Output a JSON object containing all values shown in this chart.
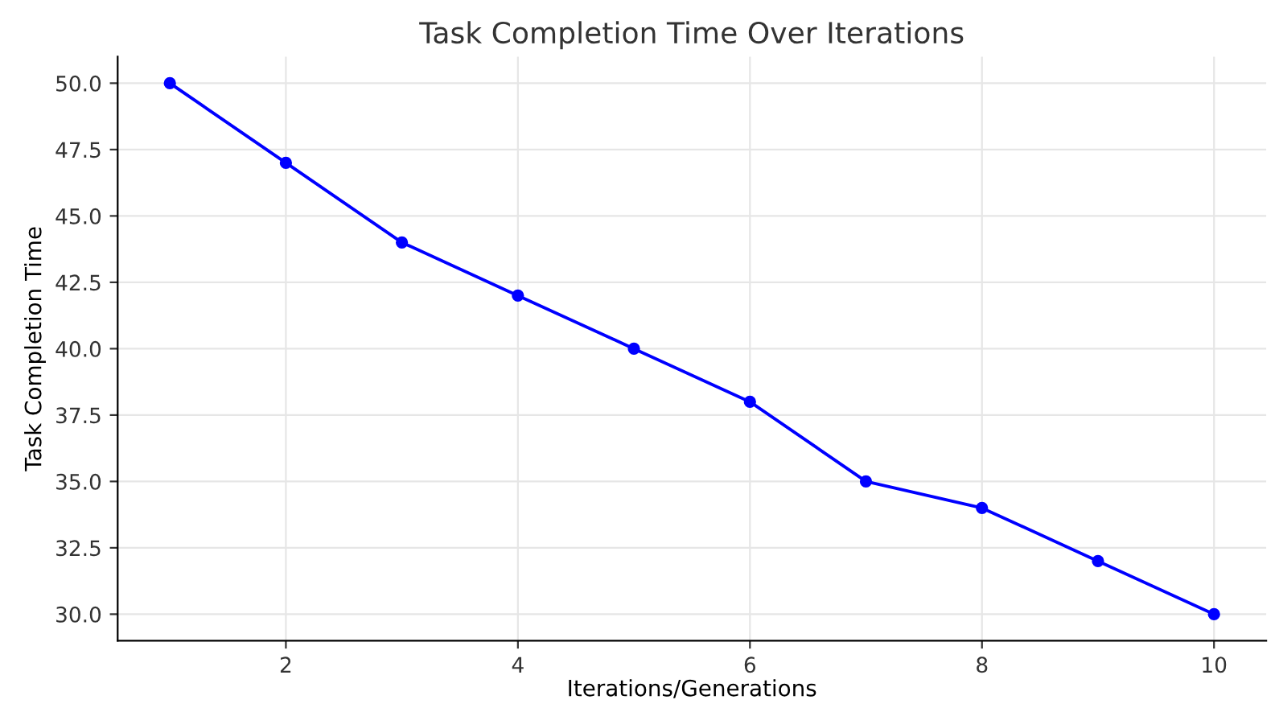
{
  "chart_data": {
    "type": "line",
    "title": "Task Completion Time Over Iterations",
    "xlabel": "Iterations/Generations",
    "ylabel": "Task Completion Time",
    "x": [
      1,
      2,
      3,
      4,
      5,
      6,
      7,
      8,
      9,
      10
    ],
    "series": [
      {
        "color": "#0000ff",
        "values": [
          50,
          47,
          44,
          42,
          40,
          38,
          35,
          34,
          32,
          30
        ]
      }
    ],
    "xlim": [
      0.55,
      10.45
    ],
    "xticks": [
      2,
      4,
      6,
      8,
      10
    ],
    "ylim": [
      29,
      51
    ],
    "yticks": [
      {
        "value": 30,
        "label": "30.0"
      },
      {
        "value": 32.5,
        "label": "32.5"
      },
      {
        "value": 35,
        "label": "35.0"
      },
      {
        "value": 37.5,
        "label": "37.5"
      },
      {
        "value": 40,
        "label": "40.0"
      },
      {
        "value": 42.5,
        "label": "42.5"
      },
      {
        "value": 45,
        "label": "45.0"
      },
      {
        "value": 47.5,
        "label": "47.5"
      },
      {
        "value": 50,
        "label": "50.0"
      }
    ],
    "grid": true,
    "marker": "circle",
    "line_style": "solid"
  }
}
